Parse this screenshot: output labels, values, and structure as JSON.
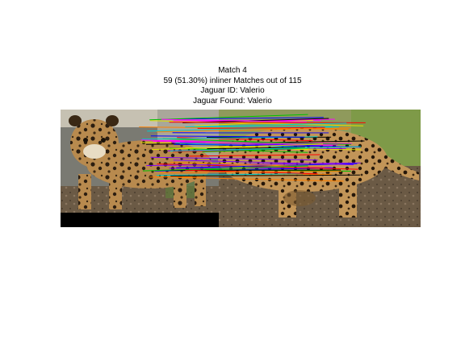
{
  "figure": {
    "title_lines": [
      "Match 4",
      "59 (51.30%) inliner Matches out of 115",
      "Jaguar ID: Valerio",
      "Jaguar Found: Valerio"
    ],
    "match_count": 59,
    "total_matches": 115,
    "inlier_ratio": 0.513,
    "match_line_colors": [
      "#ff0000",
      "#00c000",
      "#0000ff",
      "#ff00ff",
      "#00cccc",
      "#e0e000",
      "#000000",
      "#8000ff",
      "#ff8000"
    ]
  }
}
